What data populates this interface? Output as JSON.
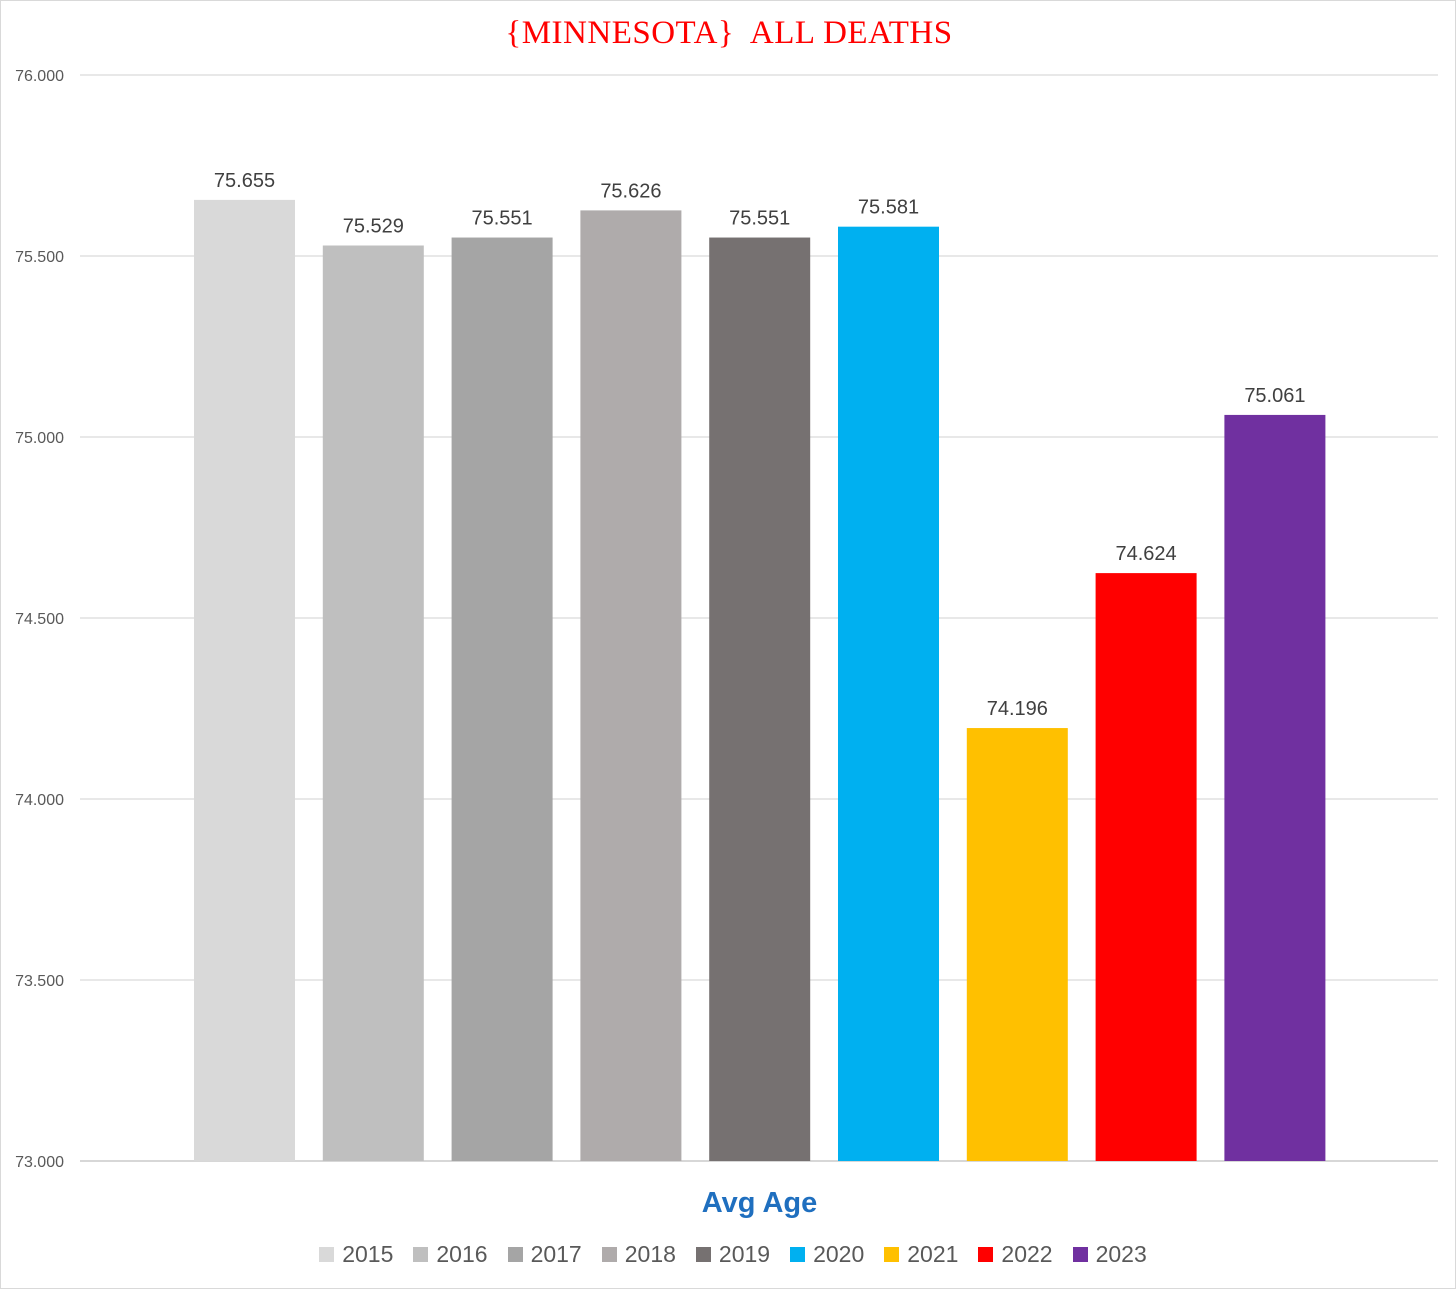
{
  "chart_data": {
    "type": "bar",
    "title": "{MINNESOTA}  ALL DEATHS",
    "xlabel": "Avg Age",
    "ylabel": "",
    "ylim": [
      73.0,
      76.0
    ],
    "yticks": [
      "73.000",
      "73.500",
      "74.000",
      "74.500",
      "75.000",
      "75.500",
      "76.000"
    ],
    "grid": true,
    "legend_position": "bottom",
    "categories": [
      "Avg Age"
    ],
    "series": [
      {
        "name": "2015",
        "values": [
          75.655
        ],
        "label": "75.655",
        "color": "#d9d9d9"
      },
      {
        "name": "2016",
        "values": [
          75.529
        ],
        "label": "75.529",
        "color": "#bfbfbf"
      },
      {
        "name": "2017",
        "values": [
          75.551
        ],
        "label": "75.551",
        "color": "#a5a5a5"
      },
      {
        "name": "2018",
        "values": [
          75.626
        ],
        "label": "75.626",
        "color": "#afabab"
      },
      {
        "name": "2019",
        "values": [
          75.551
        ],
        "label": "75.551",
        "color": "#767171"
      },
      {
        "name": "2020",
        "values": [
          75.581
        ],
        "label": "75.581",
        "color": "#00b0f0"
      },
      {
        "name": "2021",
        "values": [
          74.196
        ],
        "label": "74.196",
        "color": "#ffc000"
      },
      {
        "name": "2022",
        "values": [
          74.624
        ],
        "label": "74.624",
        "color": "#ff0000"
      },
      {
        "name": "2023",
        "values": [
          75.061
        ],
        "label": "75.061",
        "color": "#7030a0"
      }
    ]
  }
}
